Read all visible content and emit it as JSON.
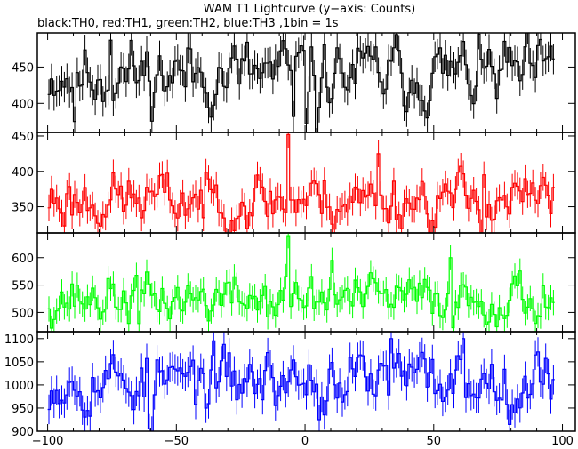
{
  "chart_data": {
    "type": "line",
    "title": "WAM T1 Lightcurve (y−axis: Counts)",
    "subtitle": "black:TH0, red:TH1, green:TH2, blue:TH3 ,1bin = 1s",
    "xlim": [
      -104,
      105
    ],
    "x_ticks": [
      -100,
      -50,
      0,
      50,
      100
    ],
    "x_tick_labels": [
      "−100",
      "−50",
      "0",
      "50",
      "100"
    ],
    "x": {
      "start": -99.5,
      "step": 1,
      "count": 197
    },
    "grid": false,
    "series": [
      {
        "name": "TH0",
        "color": "#000000",
        "ylim": [
          360,
          497
        ],
        "y_ticks": [
          400,
          450
        ],
        "mean": 440,
        "noise": 22,
        "errors": 21,
        "seed": 11,
        "spikes": [
          {
            "x": 4,
            "value": 345
          },
          {
            "x": 0,
            "value": 372
          },
          {
            "x": -5,
            "value": 382
          },
          {
            "x": -76,
            "value": 487
          },
          {
            "x": -90,
            "value": 375
          }
        ]
      },
      {
        "name": "TH1",
        "color": "#ff0000",
        "ylim": [
          313,
          455
        ],
        "y_ticks": [
          350,
          400,
          450
        ],
        "mean": 360,
        "noise": 18,
        "errors": 19,
        "seed": 23,
        "spikes": [
          {
            "x": -7,
            "value": 452
          },
          {
            "x": 28,
            "value": 425
          },
          {
            "x": 69,
            "value": 395
          }
        ]
      },
      {
        "name": "TH2",
        "color": "#00ff00",
        "ylim": [
          465,
          645
        ],
        "y_ticks": [
          500,
          550,
          600
        ],
        "mean": 525,
        "noise": 20,
        "errors": 23,
        "seed": 37,
        "spikes": [
          {
            "x": -7,
            "value": 640
          },
          {
            "x": 10,
            "value": 595
          },
          {
            "x": 56,
            "value": 600
          },
          {
            "x": -65,
            "value": 480
          }
        ]
      },
      {
        "name": "TH3",
        "color": "#0000ff",
        "ylim": [
          900,
          1115
        ],
        "y_ticks": [
          900,
          950,
          1000,
          1050,
          1100
        ],
        "y_tick_labels": [
          "900",
          "950",
          "1000",
          "1050",
          "1100"
        ],
        "mean": 1010,
        "noise": 30,
        "errors": 32,
        "seed": 53,
        "spikes": [
          {
            "x": -61,
            "value": 905
          },
          {
            "x": -60,
            "value": 900
          },
          {
            "x": 5,
            "value": 925
          },
          {
            "x": 33,
            "value": 1100
          },
          {
            "x": 61,
            "value": 1100
          }
        ]
      }
    ]
  }
}
